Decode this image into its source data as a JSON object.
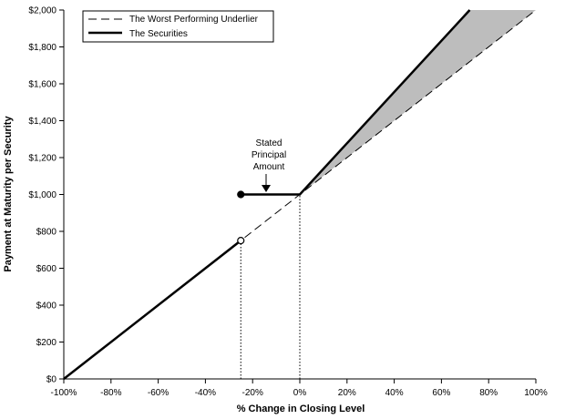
{
  "chart_data": {
    "type": "line",
    "xlabel": "% Change in Closing Level",
    "ylabel": "Payment at Maturity per Security",
    "xlim": [
      -100,
      100
    ],
    "ylim": [
      0,
      2000
    ],
    "x_ticks": [
      -100,
      -80,
      -60,
      -40,
      -20,
      0,
      20,
      40,
      60,
      80,
      100
    ],
    "x_tick_labels": [
      "-100%",
      "-80%",
      "-60%",
      "-40%",
      "-20%",
      "0%",
      "20%",
      "40%",
      "60%",
      "80%",
      "100%"
    ],
    "y_ticks": [
      0,
      200,
      400,
      600,
      800,
      1000,
      1200,
      1400,
      1600,
      1800,
      2000
    ],
    "y_tick_labels": [
      "$0",
      "$200",
      "$400",
      "$600",
      "$800",
      "$1,000",
      "$1,200",
      "$1,400",
      "$1,600",
      "$1,800",
      "$2,000"
    ],
    "legend_position": "top-left",
    "series": [
      {
        "name": "The Worst Performing Underlier",
        "style": "dashed",
        "color": "#000000",
        "points": [
          [
            -100,
            0
          ],
          [
            100,
            2000
          ]
        ]
      },
      {
        "name": "The Securities",
        "style": "solid",
        "color": "#000000",
        "segments": [
          [
            [
              -100,
              0
            ],
            [
              -25,
              750
            ]
          ],
          [
            [
              -25,
              1000
            ],
            [
              0,
              1000
            ],
            [
              72,
              2000
            ]
          ]
        ],
        "markers": [
          {
            "x": -25,
            "y": 1000,
            "fill": "filled"
          },
          {
            "x": -25,
            "y": 750,
            "fill": "open"
          }
        ]
      }
    ],
    "shaded_region": {
      "color": "#bdbdbd",
      "between": "The Securities and The Worst Performing Underlier for x > 0%"
    },
    "reference_lines": [
      {
        "x": -25,
        "y_to": 750,
        "style": "dotted"
      },
      {
        "x": 0,
        "y_to": 1000,
        "style": "dotted"
      }
    ],
    "annotation": {
      "lines": [
        "Stated",
        "Principal",
        "Amount"
      ],
      "target": {
        "x": -15,
        "y": 1000
      }
    }
  }
}
